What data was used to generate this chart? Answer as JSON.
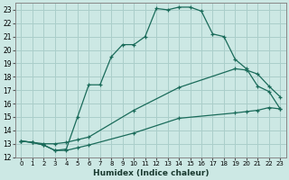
{
  "xlabel": "Humidex (Indice chaleur)",
  "bg_color": "#cce8e4",
  "grid_color": "#aaceca",
  "line_color": "#1a6b5a",
  "xlim": [
    -0.5,
    23.5
  ],
  "ylim": [
    12,
    23.5
  ],
  "xticks": [
    0,
    1,
    2,
    3,
    4,
    5,
    6,
    7,
    8,
    9,
    10,
    11,
    12,
    13,
    14,
    15,
    16,
    17,
    18,
    19,
    20,
    21,
    22,
    23
  ],
  "yticks": [
    12,
    13,
    14,
    15,
    16,
    17,
    18,
    19,
    20,
    21,
    22,
    23
  ],
  "line1_x": [
    0,
    1,
    2,
    3,
    4,
    5,
    6,
    7,
    8,
    9,
    10,
    11,
    12,
    13,
    14,
    15,
    16,
    17,
    18,
    19,
    20,
    21,
    22,
    23
  ],
  "line1_y": [
    13.2,
    13.1,
    12.9,
    12.5,
    12.6,
    15.0,
    17.4,
    17.4,
    19.5,
    20.4,
    20.4,
    21.0,
    23.1,
    23.0,
    23.2,
    23.2,
    22.9,
    21.2,
    21.0,
    19.3,
    18.6,
    17.3,
    16.9,
    15.6
  ],
  "line2_x": [
    0,
    1,
    2,
    3,
    4,
    5,
    6,
    10,
    14,
    19,
    20,
    21,
    22,
    23
  ],
  "line2_y": [
    13.2,
    13.1,
    13.0,
    13.0,
    13.1,
    13.3,
    13.5,
    15.5,
    17.2,
    18.6,
    18.5,
    18.2,
    17.3,
    16.5
  ],
  "line3_x": [
    0,
    1,
    2,
    3,
    4,
    5,
    6,
    10,
    14,
    19,
    20,
    21,
    22,
    23
  ],
  "line3_y": [
    13.2,
    13.1,
    12.9,
    12.5,
    12.5,
    12.7,
    12.9,
    13.8,
    14.9,
    15.3,
    15.4,
    15.5,
    15.7,
    15.6
  ]
}
